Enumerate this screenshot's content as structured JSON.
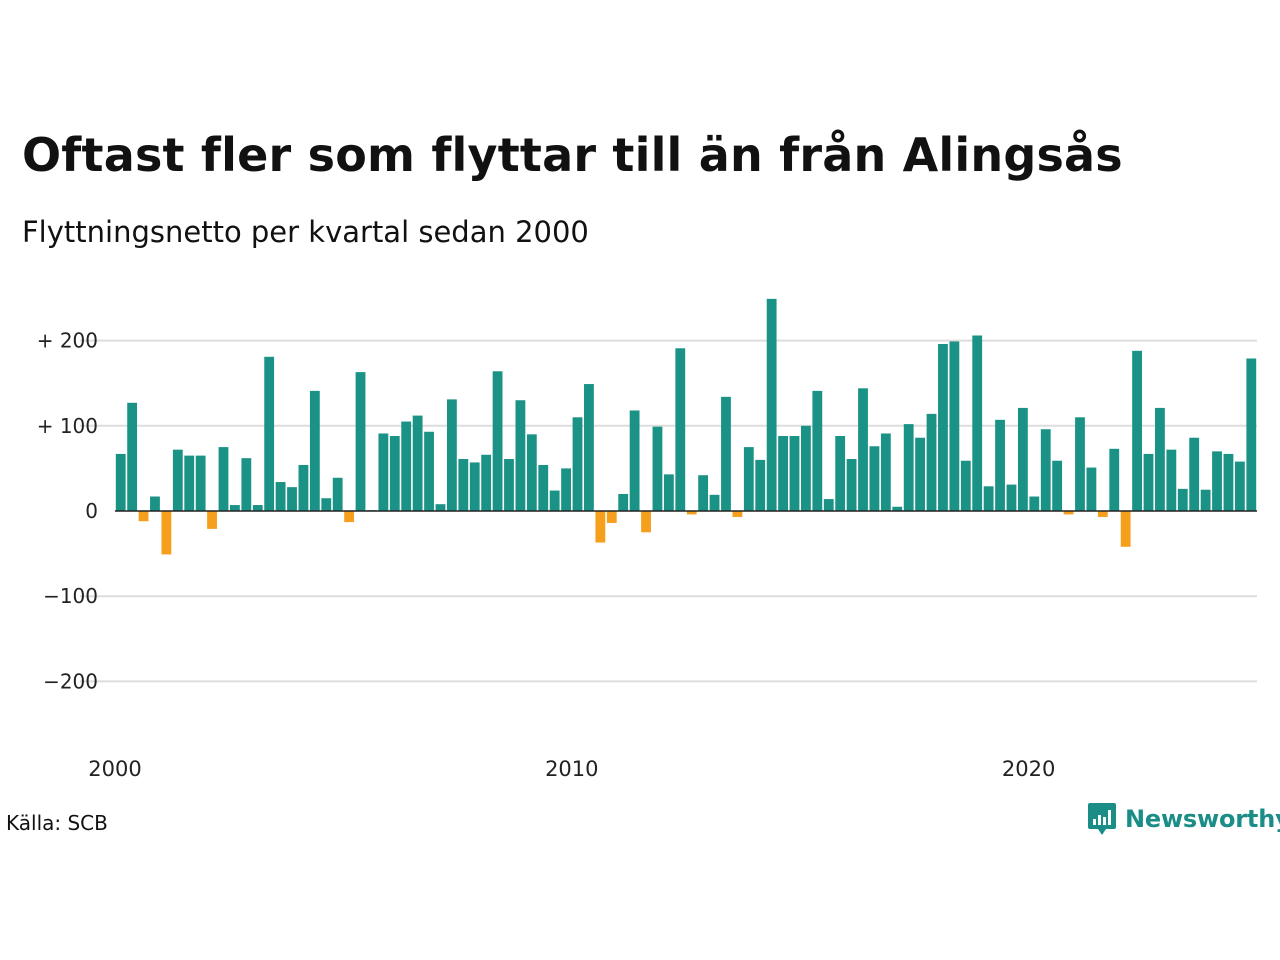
{
  "header": {
    "title": "Oftast fler som flyttar till än från Alingsås",
    "subtitle": "Flyttningsnetto per kvartal sedan 2000"
  },
  "footer": {
    "source_label": "Källa: SCB",
    "brand_name": "Newsworthy"
  },
  "colors": {
    "positive": "#1a9386",
    "negative": "#f59f1d",
    "grid": "#dddddd",
    "zero_line": "#222222",
    "brand": "#1a8e86"
  },
  "chart_data": {
    "type": "bar",
    "title": "Oftast fler som flyttar till än från Alingsås",
    "subtitle": "Flyttningsnetto per kvartal sedan 2000",
    "xlabel": "",
    "ylabel": "",
    "ylim": [
      -260,
      260
    ],
    "yticks": [
      {
        "value": 200,
        "label": "+ 200"
      },
      {
        "value": 100,
        "label": "+ 100"
      },
      {
        "value": 0,
        "label": "0"
      },
      {
        "value": -100,
        "label": "−100"
      },
      {
        "value": -200,
        "label": "−200"
      }
    ],
    "xticks": [
      {
        "year": 2000,
        "label": "2000"
      },
      {
        "year": 2010,
        "label": "2010"
      },
      {
        "year": 2020,
        "label": "2020"
      }
    ],
    "first_year": 2000,
    "periods_per_year": 4,
    "grid": true,
    "values": [
      67,
      127,
      -12,
      17,
      -51,
      72,
      65,
      65,
      -21,
      75,
      7,
      62,
      7,
      181,
      34,
      28,
      54,
      141,
      15,
      39,
      -13,
      163,
      1,
      91,
      88,
      105,
      112,
      93,
      8,
      131,
      61,
      57,
      66,
      164,
      61,
      130,
      90,
      54,
      24,
      50,
      110,
      149,
      -37,
      -14,
      20,
      118,
      -25,
      99,
      43,
      191,
      -4,
      42,
      19,
      134,
      -7,
      75,
      60,
      249,
      88,
      88,
      100,
      141,
      14,
      88,
      61,
      144,
      76,
      91,
      5,
      102,
      86,
      114,
      196,
      199,
      59,
      206,
      29,
      107,
      31,
      121,
      17,
      96,
      59,
      -4,
      110,
      51,
      -7,
      73,
      -42,
      188,
      67,
      121,
      72,
      26,
      86,
      25,
      70,
      67,
      58,
      179
    ]
  }
}
